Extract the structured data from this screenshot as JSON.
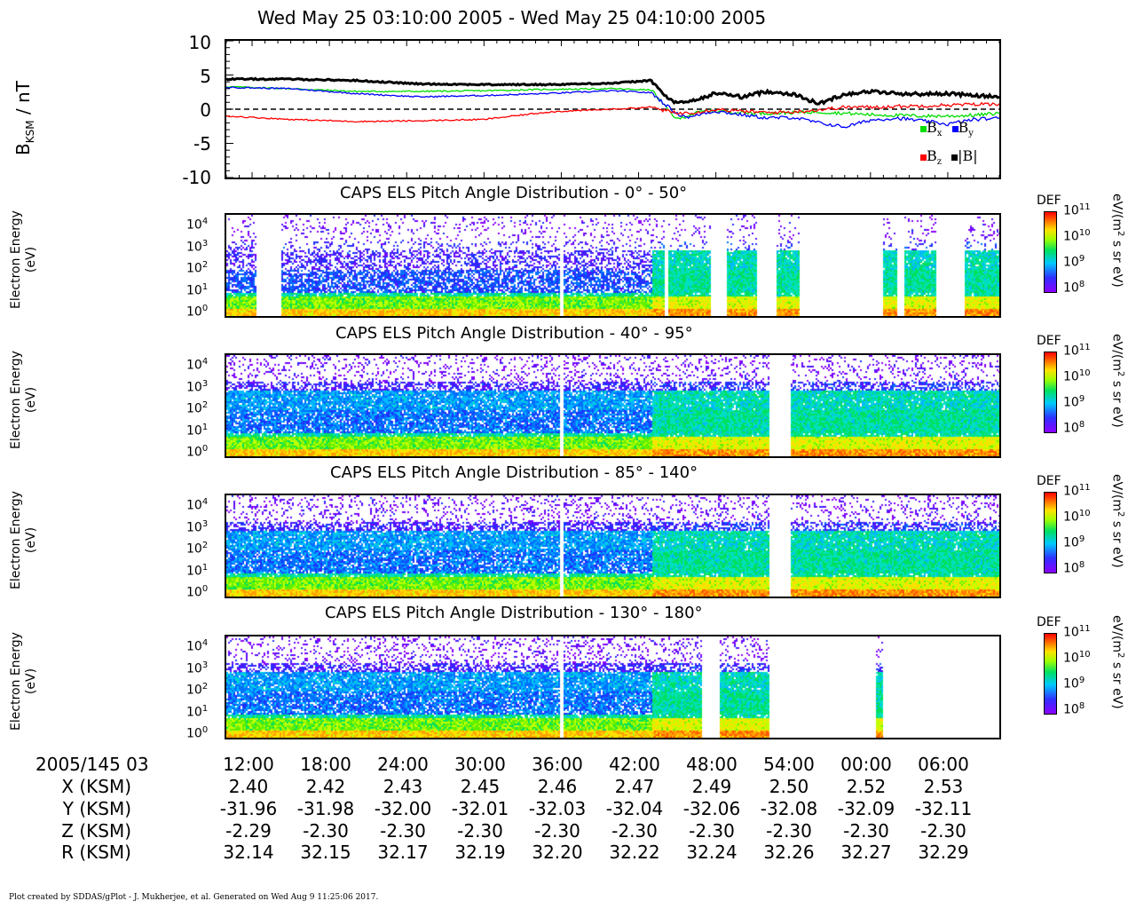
{
  "header": {
    "title": "Wed May 25 03:10:00 2005 - Wed May 25 04:10:00 2005"
  },
  "mag_panel": {
    "ylabel_main": "B",
    "ylabel_sub": "KSM",
    "ylabel_unit": " / nT",
    "yticks": [
      "10",
      "5",
      "0",
      "-5",
      "-10"
    ],
    "legend": {
      "bx": "B",
      "bx_sub": "x",
      "by": "B",
      "by_sub": "y",
      "bz": "B",
      "bz_sub": "z",
      "bmag": "|B|"
    },
    "colors": {
      "bx": "#00dd00",
      "by": "#0000ff",
      "bz": "#ff0000",
      "bmag": "#000000"
    }
  },
  "spectrogram_panels": [
    {
      "title": "CAPS ELS Pitch Angle Distribution - 0° - 50°"
    },
    {
      "title": "CAPS ELS Pitch Angle Distribution - 40° - 95°"
    },
    {
      "title": "CAPS ELS Pitch Angle Distribution - 85° - 140°"
    },
    {
      "title": "CAPS ELS Pitch Angle Distribution - 130° - 180°"
    }
  ],
  "spec_axis": {
    "ylabel_line1": "Electron Energy",
    "ylabel_line2": "(eV)",
    "ytick_base": "10",
    "ytick_exps": [
      "4",
      "3",
      "2",
      "1",
      "0"
    ]
  },
  "colorbar": {
    "label": "DEF",
    "base": "10",
    "exps": [
      "11",
      "10",
      "9",
      "8"
    ],
    "unit_a": "eV/(m",
    "unit_sup": "2",
    "unit_b": " s sr eV)"
  },
  "x_axis": {
    "start_label": "2005/145 03",
    "ticks": [
      "12:00",
      "18:00",
      "24:00",
      "30:00",
      "36:00",
      "42:00",
      "48:00",
      "54:00",
      "00:00",
      "06:00"
    ],
    "rows": [
      {
        "label": "X (KSM)",
        "values": [
          "2.40",
          "2.42",
          "2.43",
          "2.45",
          "2.46",
          "2.47",
          "2.49",
          "2.50",
          "2.52",
          "2.53"
        ]
      },
      {
        "label": "Y (KSM)",
        "values": [
          "-31.96",
          "-31.98",
          "-32.00",
          "-32.01",
          "-32.03",
          "-32.04",
          "-32.06",
          "-32.08",
          "-32.09",
          "-32.11"
        ]
      },
      {
        "label": "Z (KSM)",
        "values": [
          "-2.29",
          "-2.30",
          "-2.30",
          "-2.30",
          "-2.30",
          "-2.30",
          "-2.30",
          "-2.30",
          "-2.30",
          "-2.30"
        ]
      },
      {
        "label": "R (KSM)",
        "values": [
          "32.14",
          "32.15",
          "32.17",
          "32.19",
          "32.20",
          "32.22",
          "32.24",
          "32.26",
          "32.27",
          "32.29"
        ]
      }
    ]
  },
  "footer": {
    "text": "Plot created by SDDAS/gPlot - J. Mukherjee, et al.  Generated on Wed Aug 9 11:25:06 2017."
  },
  "chart_data": [
    {
      "type": "line",
      "title": "Wed May 25 03:10:00 2005 - Wed May 25 04:10:00 2005",
      "xlabel": "",
      "ylabel": "B KSM / nT",
      "ylim": [
        -10,
        10
      ],
      "xlim_minutes_after_0310": [
        0,
        60
      ],
      "zero_line": "dashed",
      "legend_position": "bottom-right",
      "x": [
        0,
        5,
        10,
        15,
        20,
        25,
        30,
        33,
        34,
        35,
        36,
        37,
        38,
        40,
        42,
        44,
        46,
        48,
        50,
        52,
        54,
        56,
        58,
        60
      ],
      "series": [
        {
          "name": "Bx",
          "color": "#00dd00",
          "values": [
            3.3,
            3.0,
            2.6,
            2.6,
            2.7,
            2.9,
            3.0,
            2.8,
            0.5,
            -1.5,
            -0.8,
            -0.3,
            -0.3,
            -0.5,
            -0.6,
            -0.5,
            -0.4,
            -0.6,
            -0.8,
            -0.9,
            -1.0,
            -1.0,
            -0.9,
            -0.6
          ]
        },
        {
          "name": "By",
          "color": "#0000ff",
          "values": [
            3.2,
            3.0,
            2.3,
            1.8,
            2.0,
            2.3,
            2.7,
            2.4,
            0.8,
            -0.7,
            -1.2,
            -0.6,
            -0.3,
            -0.8,
            -1.3,
            -1.2,
            -2.0,
            -2.6,
            -1.6,
            -1.3,
            -1.7,
            -2.2,
            -1.5,
            -1.3
          ]
        },
        {
          "name": "Bz",
          "color": "#ff0000",
          "values": [
            -1.0,
            -1.5,
            -1.8,
            -1.7,
            -1.5,
            -0.4,
            0.0,
            0.3,
            -0.2,
            -0.6,
            -0.5,
            -0.3,
            0.0,
            -0.3,
            -0.5,
            -0.4,
            -0.1,
            0.3,
            0.3,
            0.4,
            0.5,
            0.6,
            0.7,
            0.8
          ]
        },
        {
          "name": "|B|",
          "color": "#000000",
          "values": [
            4.4,
            4.4,
            4.2,
            3.7,
            3.6,
            3.6,
            3.8,
            4.2,
            2.0,
            0.8,
            1.2,
            1.6,
            2.4,
            1.8,
            2.6,
            2.2,
            0.8,
            2.2,
            2.6,
            2.3,
            2.2,
            2.3,
            2.0,
            1.8
          ]
        }
      ]
    },
    {
      "type": "heatmap",
      "title": "CAPS ELS Pitch Angle Distribution - 0° - 50°",
      "ylabel": "Electron Energy (eV)",
      "y_scale": "log",
      "ylim": [
        1,
        20000
      ],
      "colorbar": {
        "label": "DEF",
        "range": [
          100000000.0,
          100000000000.0
        ],
        "scale": "log",
        "unit": "eV/(m2 s sr eV)"
      },
      "data_gap_minutes": [
        [
          2.3,
          4.2
        ],
        [
          25.9,
          26.1
        ],
        [
          33.9,
          34.3
        ],
        [
          37.6,
          38.8
        ],
        [
          41.1,
          42.6
        ],
        [
          44.4,
          50.9
        ],
        [
          52.0,
          52.5
        ],
        [
          55.0,
          57.2
        ]
      ]
    },
    {
      "type": "heatmap",
      "title": "CAPS ELS Pitch Angle Distribution - 40° - 95°",
      "ylabel": "Electron Energy (eV)",
      "y_scale": "log",
      "ylim": [
        1,
        20000
      ],
      "colorbar": {
        "label": "DEF",
        "range": [
          100000000.0,
          100000000000.0
        ],
        "scale": "log",
        "unit": "eV/(m2 s sr eV)"
      },
      "data_gap_minutes": [
        [
          25.9,
          26.1
        ],
        [
          42.1,
          43.8
        ]
      ]
    },
    {
      "type": "heatmap",
      "title": "CAPS ELS Pitch Angle Distribution - 85° - 140°",
      "ylabel": "Electron Energy (eV)",
      "y_scale": "log",
      "ylim": [
        1,
        20000
      ],
      "colorbar": {
        "label": "DEF",
        "range": [
          100000000.0,
          100000000000.0
        ],
        "scale": "log",
        "unit": "eV/(m2 s sr eV)"
      },
      "data_gap_minutes": [
        [
          25.9,
          26.1
        ],
        [
          42.1,
          43.8
        ]
      ]
    },
    {
      "type": "heatmap",
      "title": "CAPS ELS Pitch Angle Distribution - 130° - 180°",
      "ylabel": "Electron Energy (eV)",
      "y_scale": "log",
      "ylim": [
        1,
        20000
      ],
      "colorbar": {
        "label": "DEF",
        "range": [
          100000000.0,
          100000000000.0
        ],
        "scale": "log",
        "unit": "eV/(m2 s sr eV)"
      },
      "data_gap_minutes": [
        [
          25.9,
          26.1
        ],
        [
          36.8,
          38.3
        ],
        [
          42.1,
          50.3
        ],
        [
          50.9,
          60.0
        ]
      ]
    }
  ]
}
